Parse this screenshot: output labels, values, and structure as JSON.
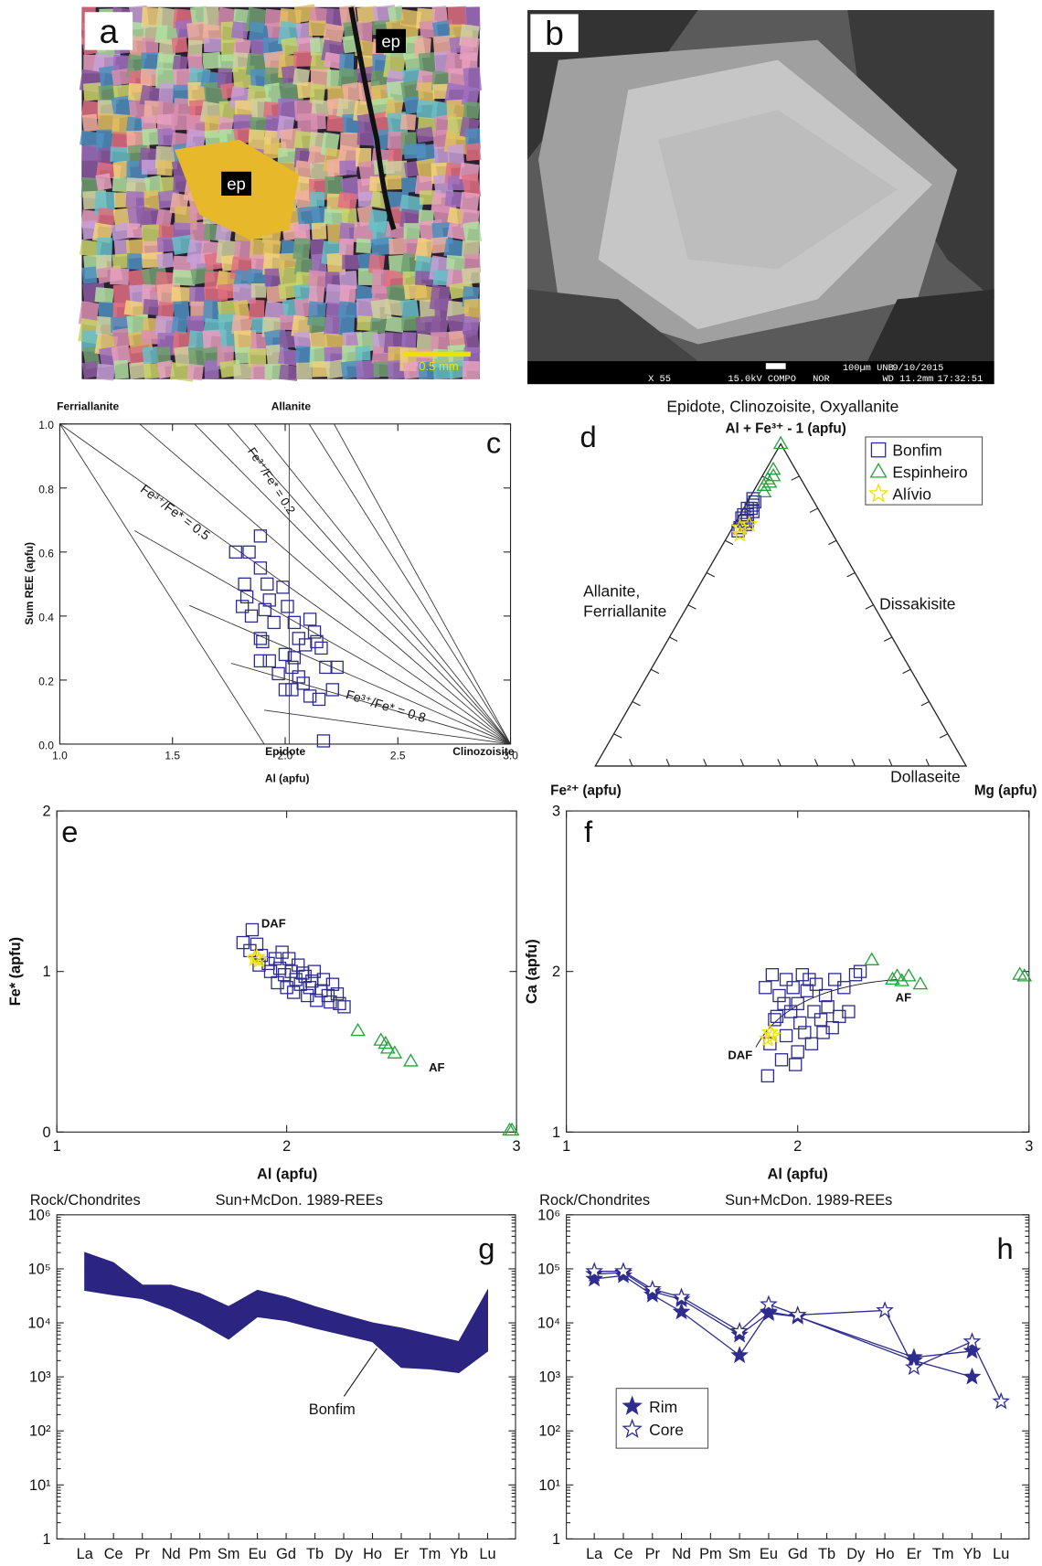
{
  "images": [
    {
      "label": "a",
      "annotations": [
        "ep",
        "ep"
      ],
      "scale_bar": "0.5 mm"
    },
    {
      "label": "b",
      "footer": [
        "X 55",
        "15.0kV COMPO",
        "NOR",
        "100µm UNB",
        "WD 11.2mm",
        "9/10/2015",
        "17:32:51"
      ]
    }
  ],
  "chart_data": [
    {
      "type": "scatter",
      "panel": "c",
      "x_label": "Al (apfu)",
      "y_label": "Sum REE (apfu)",
      "xlim": [
        1,
        3
      ],
      "ylim": [
        0,
        1
      ],
      "xticks": [
        {
          "value": 1,
          "label": "1.0"
        },
        1.5,
        {
          "value": 2,
          "label": "2.0"
        },
        2.5,
        {
          "value": 3,
          "label": "3.0"
        }
      ],
      "yticks": [
        {
          "value": 0,
          "label": "0.0"
        },
        0.2,
        0.4,
        0.6,
        0.8,
        {
          "value": 1,
          "label": "1.0"
        }
      ],
      "annotations": [
        "Ferriallanite",
        "Allanite",
        "Epidote",
        "Clinozoisite",
        "Fe³⁺/Fe* = 0.2",
        "Fe³⁺/Fe* = 0.5",
        "Fe³⁺/Fe* = 0.8"
      ],
      "series": [
        {
          "color": "#2e2d8f",
          "marker": "square",
          "x": [
            1.89,
            1.84,
            1.78,
            1.89,
            1.82,
            1.92,
            1.83,
            1.91,
            1.99,
            2.01,
            1.95,
            1.85,
            1.81,
            1.93,
            2.04,
            2.06,
            2.11,
            2.13,
            2.14,
            2.16,
            2.09,
            1.89,
            1.9,
            2.0,
            2.04,
            2.03,
            1.93,
            1.89,
            1.97,
            2.06,
            2.18,
            2.23,
            2.21,
            2.08,
            2.03,
            2.0,
            2.11,
            2.15,
            2.17
          ],
          "values": [
            0.65,
            0.6,
            0.6,
            0.55,
            0.5,
            0.5,
            0.46,
            0.42,
            0.49,
            0.43,
            0.38,
            0.4,
            0.43,
            0.45,
            0.38,
            0.33,
            0.39,
            0.35,
            0.32,
            0.3,
            0.31,
            0.33,
            0.32,
            0.28,
            0.27,
            0.24,
            0.26,
            0.26,
            0.22,
            0.21,
            0.24,
            0.24,
            0.17,
            0.19,
            0.17,
            0.17,
            0.15,
            0.14,
            0.01
          ]
        }
      ]
    },
    {
      "type": "ternary",
      "panel": "d",
      "title": "Epidote, Clinozoisite, Oxyallanite",
      "apex_label": "Al + Fe³⁺ - 1 (apfu)",
      "left_label": "Fe²⁺ (apfu)",
      "right_label": "Mg (apfu)",
      "annotations": [
        "Allanite,",
        "Ferriallanite",
        "Dissakisite",
        "Dollaseite"
      ],
      "legend": "upper right",
      "series": [
        {
          "name": "Bonfim",
          "color": "#2e2d8f",
          "marker": "square",
          "values": [
            0.83,
            0.81,
            0.8,
            0.79,
            0.78,
            0.77,
            0.76,
            0.75,
            0.74,
            0.8,
            0.78,
            0.76,
            0.73,
            0.82
          ],
          "right": [
            0.01,
            0.02,
            0.01,
            0.03,
            0.02,
            0.01,
            0.02,
            0.03,
            0.02,
            0.02,
            0.01,
            0.03,
            0.02,
            0.02
          ]
        },
        {
          "name": "Espinheiro",
          "color": "#22a33a",
          "marker": "triangle",
          "values": [
            1.0,
            0.92,
            0.9,
            0.89,
            0.88,
            0.87,
            0.85
          ],
          "right": [
            0,
            0.02,
            0.03,
            0.02,
            0.03,
            0.02,
            0.03
          ]
        },
        {
          "name": "Alívio",
          "color": "#f0e000",
          "marker": "star",
          "values": [
            0.72,
            0.74,
            0.75
          ],
          "right": [
            0.03,
            0.02,
            0.04
          ]
        }
      ]
    },
    {
      "type": "scatter",
      "panel": "e",
      "x_label": "Al (apfu)",
      "y_label": "Fe* (apfu)",
      "xlim": [
        1,
        3
      ],
      "ylim": [
        0,
        2
      ],
      "xticks": [
        1,
        2,
        3
      ],
      "yticks": [
        0,
        1,
        2
      ],
      "annotations": [
        "DAF",
        "AF"
      ],
      "series": [
        {
          "color": "#2e2d8f",
          "marker": "square",
          "x": [
            1.81,
            1.85,
            1.84,
            1.87,
            1.89,
            1.92,
            1.95,
            1.97,
            1.99,
            2.02,
            2.04,
            2.06,
            2.08,
            2.1,
            2.12,
            2.15,
            2.18,
            2.2,
            2.23,
            2.25,
            2.0,
            1.96,
            2.05,
            2.09,
            2.13,
            1.93,
            2.01,
            2.16,
            2.22,
            1.88,
            2.03,
            2.11,
            1.98,
            2.07,
            2.19
          ],
          "values": [
            1.18,
            1.26,
            1.13,
            1.17,
            1.1,
            1.05,
            1.08,
            1.02,
            0.98,
            1.0,
            0.95,
            0.92,
            0.97,
            0.9,
            1.0,
            0.88,
            0.85,
            0.92,
            0.8,
            0.78,
            0.9,
            0.93,
            1.04,
            0.85,
            0.82,
            1.0,
            1.08,
            0.95,
            0.86,
            1.04,
            0.87,
            0.94,
            1.12,
            0.99,
            0.81
          ]
        },
        {
          "color": "#22a33a",
          "marker": "triangle",
          "x": [
            2.31,
            2.41,
            2.43,
            2.44,
            2.47,
            2.54,
            2.97,
            2.98
          ],
          "values": [
            0.63,
            0.57,
            0.55,
            0.52,
            0.49,
            0.44,
            0.01,
            0.01
          ]
        },
        {
          "color": "#f0e000",
          "marker": "star",
          "x": [
            1.86,
            1.87,
            1.88
          ],
          "values": [
            1.08,
            1.09,
            1.07
          ]
        }
      ]
    },
    {
      "type": "scatter",
      "panel": "f",
      "x_label": "Al (apfu)",
      "y_label": "Ca (apfu)",
      "xlim": [
        1,
        3
      ],
      "ylim": [
        1,
        3
      ],
      "xticks": [
        1,
        2,
        3
      ],
      "yticks": [
        1,
        2,
        3
      ],
      "annotations": [
        "AF",
        "DAF"
      ],
      "series": [
        {
          "color": "#2e2d8f",
          "marker": "square",
          "x": [
            1.87,
            1.88,
            1.9,
            1.92,
            1.95,
            1.98,
            2.0,
            2.02,
            2.05,
            2.07,
            2.1,
            2.12,
            2.15,
            2.18,
            2.2,
            2.25,
            2.27,
            2.22,
            1.95,
            2.0,
            1.93,
            2.03,
            1.97,
            2.08,
            1.86,
            1.89,
            2.06,
            2.13,
            2.01,
            1.94,
            2.16,
            1.99,
            2.04,
            2.11,
            1.91
          ],
          "values": [
            1.35,
            1.55,
            1.7,
            1.85,
            1.95,
            1.9,
            1.8,
            1.98,
            1.95,
            1.75,
            1.7,
            1.85,
            1.65,
            1.72,
            1.9,
            1.98,
            2.0,
            1.75,
            1.6,
            1.5,
            1.45,
            1.62,
            1.75,
            1.92,
            1.9,
            1.98,
            1.55,
            1.78,
            1.68,
            1.8,
            1.95,
            1.42,
            1.88,
            1.62,
            1.72
          ]
        },
        {
          "color": "#22a33a",
          "marker": "triangle",
          "x": [
            2.32,
            2.41,
            2.43,
            2.45,
            2.48,
            2.53,
            2.96,
            2.98
          ],
          "values": [
            2.07,
            1.95,
            1.97,
            1.94,
            1.97,
            1.92,
            1.98,
            1.97
          ]
        },
        {
          "color": "#f0e000",
          "marker": "star",
          "x": [
            1.87,
            1.88,
            1.89
          ],
          "values": [
            1.58,
            1.62,
            1.6
          ]
        }
      ]
    },
    {
      "type": "band",
      "panel": "g",
      "y_label": "Rock/Chondrites",
      "title": "Sun+McDon. 1989-REEs",
      "log": true,
      "categories": [
        "La",
        "Ce",
        "Pr",
        "Nd",
        "Pm",
        "Sm",
        "Eu",
        "Gd",
        "Tb",
        "Dy",
        "Ho",
        "Er",
        "Tm",
        "Yb",
        "Lu"
      ],
      "ylim": [
        1,
        1000000
      ],
      "yticks": [
        1,
        {
          "value": 10,
          "label": "10¹"
        },
        {
          "value": 100,
          "label": "10²"
        },
        {
          "value": 1000,
          "label": "10³"
        },
        {
          "value": 10000,
          "label": "10⁴"
        },
        {
          "value": 100000,
          "label": "10⁵"
        },
        {
          "value": 1000000,
          "label": "10⁶"
        }
      ],
      "annotation": "Bonfim",
      "color": "#2b2480",
      "upper": [
        200000,
        130000,
        50000,
        50000,
        35000,
        20000,
        40000,
        30000,
        20000,
        14000,
        10000,
        8000,
        6000,
        4500,
        40000
      ],
      "lower": [
        40000,
        33000,
        28000,
        18000,
        10000,
        5000,
        13000,
        11000,
        8000,
        6000,
        4500,
        1500,
        1400,
        1200,
        3000
      ]
    },
    {
      "type": "line",
      "panel": "h",
      "y_label": "Rock/Chondrites",
      "title": "Sun+McDon. 1989-REEs",
      "log": true,
      "categories": [
        "La",
        "Ce",
        "Pr",
        "Nd",
        "Pm",
        "Sm",
        "Eu",
        "Gd",
        "Tb",
        "Dy",
        "Ho",
        "Er",
        "Tm",
        "Yb",
        "Lu"
      ],
      "ylim": [
        1,
        1000000
      ],
      "yticks": [
        1,
        {
          "value": 10,
          "label": "10¹"
        },
        {
          "value": 100,
          "label": "10²"
        },
        {
          "value": 1000,
          "label": "10³"
        },
        {
          "value": 10000,
          "label": "10⁴"
        },
        {
          "value": 100000,
          "label": "10⁵"
        },
        {
          "value": 1000000,
          "label": "10⁶"
        }
      ],
      "legend": "lower left",
      "series": [
        {
          "name": "Rim",
          "color": "#2e2d8f",
          "marker": "filled-star",
          "lines": [
            {
              "categories": [
                "La",
                "Ce",
                "Pr",
                "Nd",
                "Sm",
                "Eu",
                "Gd",
                "Er",
                "Yb"
              ],
              "values": [
                65000,
                75000,
                33000,
                16000,
                2500,
                16000,
                13000,
                2000,
                1000
              ]
            },
            {
              "categories": [
                "La",
                "Ce",
                "Pr",
                "Nd",
                "Sm",
                "Eu",
                "Gd",
                "Er",
                "Yb"
              ],
              "values": [
                80000,
                85000,
                38000,
                27000,
                6000,
                15000,
                13000,
                2300,
                3000
              ]
            }
          ]
        },
        {
          "name": "Core",
          "color": "#2e2d8f",
          "marker": "star",
          "lines": [
            {
              "categories": [
                "La",
                "Ce",
                "Pr",
                "Nd",
                "Sm",
                "Eu",
                "Gd",
                "Ho",
                "Er",
                "Yb",
                "Lu"
              ],
              "values": [
                90000,
                90000,
                42000,
                30000,
                7000,
                22000,
                14000,
                17000,
                1500,
                4500,
                350
              ]
            }
          ]
        }
      ]
    }
  ]
}
